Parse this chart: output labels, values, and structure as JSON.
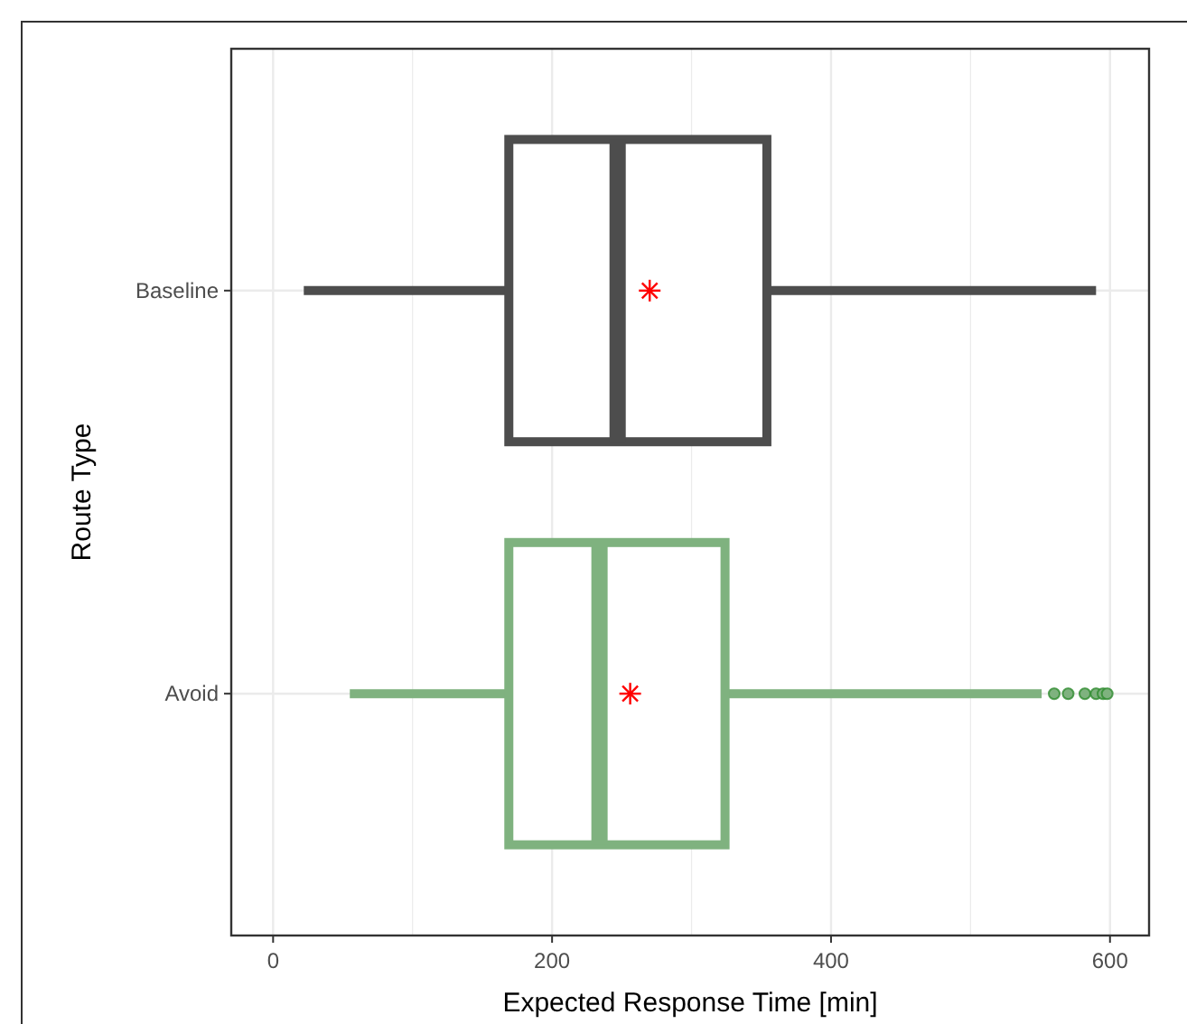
{
  "chart_data": {
    "type": "box",
    "orientation": "horizontal",
    "xlabel": "Expected Response Time [min]",
    "ylabel": "Route Type",
    "categories": [
      "Baseline",
      "Avoid"
    ],
    "colors": [
      "#4d4d4d",
      "#7fb27f"
    ],
    "boxes": [
      {
        "low": 22,
        "q1": 169,
        "median": 247,
        "q3": 354,
        "high": 590,
        "mean": 270
      },
      {
        "low": 55,
        "q1": 169,
        "median": 234,
        "q3": 324,
        "high": 551,
        "mean": 256,
        "outliers": [
          560,
          570,
          582,
          590,
          595,
          598
        ]
      }
    ],
    "xlim": [
      -30,
      628
    ],
    "xticks": [
      0,
      200,
      400,
      600
    ],
    "grid": true
  }
}
